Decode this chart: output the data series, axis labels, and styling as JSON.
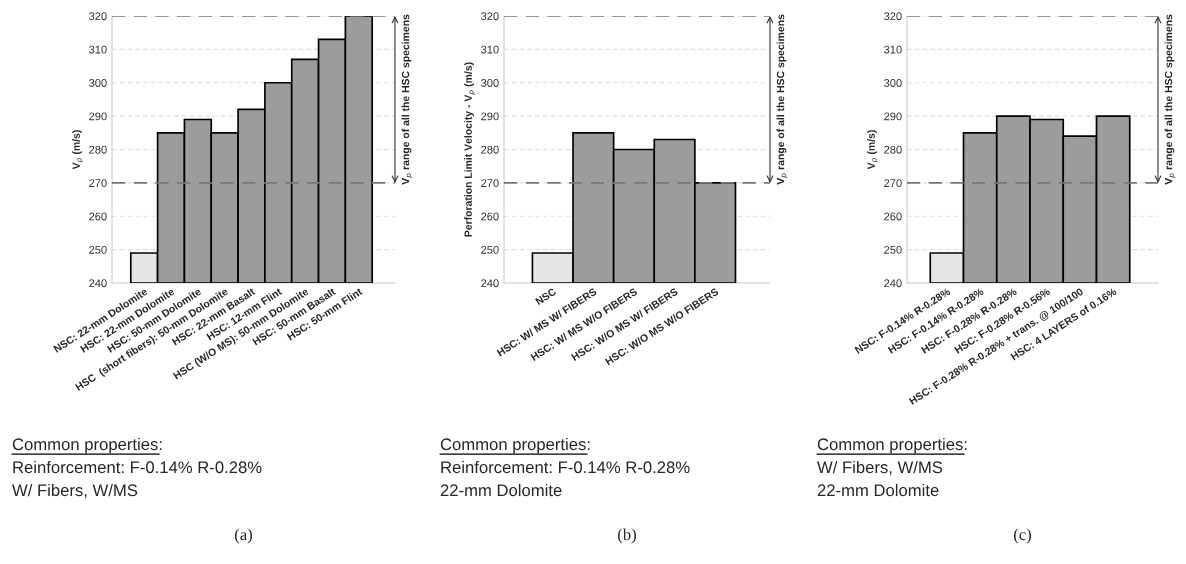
{
  "chart_data": [
    {
      "type": "bar",
      "ylabel": "V$_{p}$ (m/s)",
      "categories": [
        "NSC: 22-mm Dolomite",
        "HSC: 22-mm Dolomite",
        "HSC: 50-mm Dolomite",
        "HSC  (short fibers): 50-mm Dolomite",
        "HSC: 22-mm Basalt",
        "HSC: 12-mm Flint",
        "HSC (W/O MS): 50-mm Dolomite",
        "HSC: 50-mm Basalt",
        "HSC: 50-mm Flint"
      ],
      "values": [
        249,
        285,
        289,
        285,
        292,
        300,
        307,
        313,
        320
      ],
      "colors": [
        "#e6e6e6",
        "#9c9c9c",
        "#9c9c9c",
        "#9c9c9c",
        "#9c9c9c",
        "#9c9c9c",
        "#9c9c9c",
        "#9c9c9c",
        "#9c9c9c"
      ],
      "ylim": [
        240,
        320
      ],
      "yticks": [
        240,
        250,
        260,
        270,
        280,
        290,
        300,
        310,
        320
      ],
      "grid": "y",
      "ref_lines": [
        {
          "axis": "y",
          "value": 270,
          "color": "#777777",
          "line_style": "dashed"
        },
        {
          "axis": "y",
          "value": 320,
          "color": "#777777",
          "line_style": "dashed"
        }
      ],
      "annotations": [
        "V$_{p}$ range of all the HSC specimens",
        "Common properties:",
        "Reinforcement: F-0.14% R-0.28%",
        "W/ Fibers, W/MS",
        "(a)"
      ]
    },
    {
      "type": "bar",
      "ylabel": "Perforation Limit Velocity - V$_{p}$ (m/s)",
      "categories": [
        "NSC",
        "HSC: W/ MS W/ FIBERS",
        "HSC: W/ MS W/O FIBERS",
        "HSC: W/O MS W/ FIBERS",
        "HSC: W/O MS W/O FIBERS"
      ],
      "values": [
        249,
        285,
        280,
        283,
        270
      ],
      "colors": [
        "#e6e6e6",
        "#9c9c9c",
        "#9c9c9c",
        "#9c9c9c",
        "#9c9c9c"
      ],
      "ylim": [
        240,
        320
      ],
      "yticks": [
        240,
        250,
        260,
        270,
        280,
        290,
        300,
        310,
        320
      ],
      "grid": "y",
      "ref_lines": [
        {
          "axis": "y",
          "value": 270,
          "color": "#777777",
          "line_style": "dashed"
        },
        {
          "axis": "y",
          "value": 320,
          "color": "#777777",
          "line_style": "dashed"
        }
      ],
      "annotations": [
        "V$_{p}$ range of all the HSC specimens",
        "Common properties:",
        "Reinforcement: F-0.14% R-0.28%",
        "22-mm Dolomite",
        "(b)"
      ]
    },
    {
      "type": "bar",
      "ylabel": "V$_{p}$ (m/s)",
      "categories": [
        "NSC: F-0.14% R-0.28%",
        "HSC: F-0.14% R-0.28%",
        "HSC: F-0.28% R-0.28%",
        "HSC: F-0.28% R-0.56%",
        "HSC: F-0.28% R-0.28% + trans. @ 100/100",
        "HSC: 4 LAYERS of 0.16%"
      ],
      "values": [
        249,
        285,
        290,
        289,
        284,
        290
      ],
      "colors": [
        "#e6e6e6",
        "#9c9c9c",
        "#9c9c9c",
        "#9c9c9c",
        "#9c9c9c",
        "#9c9c9c"
      ],
      "ylim": [
        240,
        320
      ],
      "yticks": [
        240,
        250,
        260,
        270,
        280,
        290,
        300,
        310,
        320
      ],
      "grid": "y",
      "ref_lines": [
        {
          "axis": "y",
          "value": 270,
          "color": "#777777",
          "line_style": "dashed"
        },
        {
          "axis": "y",
          "value": 320,
          "color": "#777777",
          "line_style": "dashed"
        }
      ],
      "annotations": [
        "V$_{p}$ range of all the HSC specimens",
        "Common properties:",
        "W/ Fibers, W/MS",
        "22-mm Dolomite",
        "(c)"
      ]
    }
  ]
}
